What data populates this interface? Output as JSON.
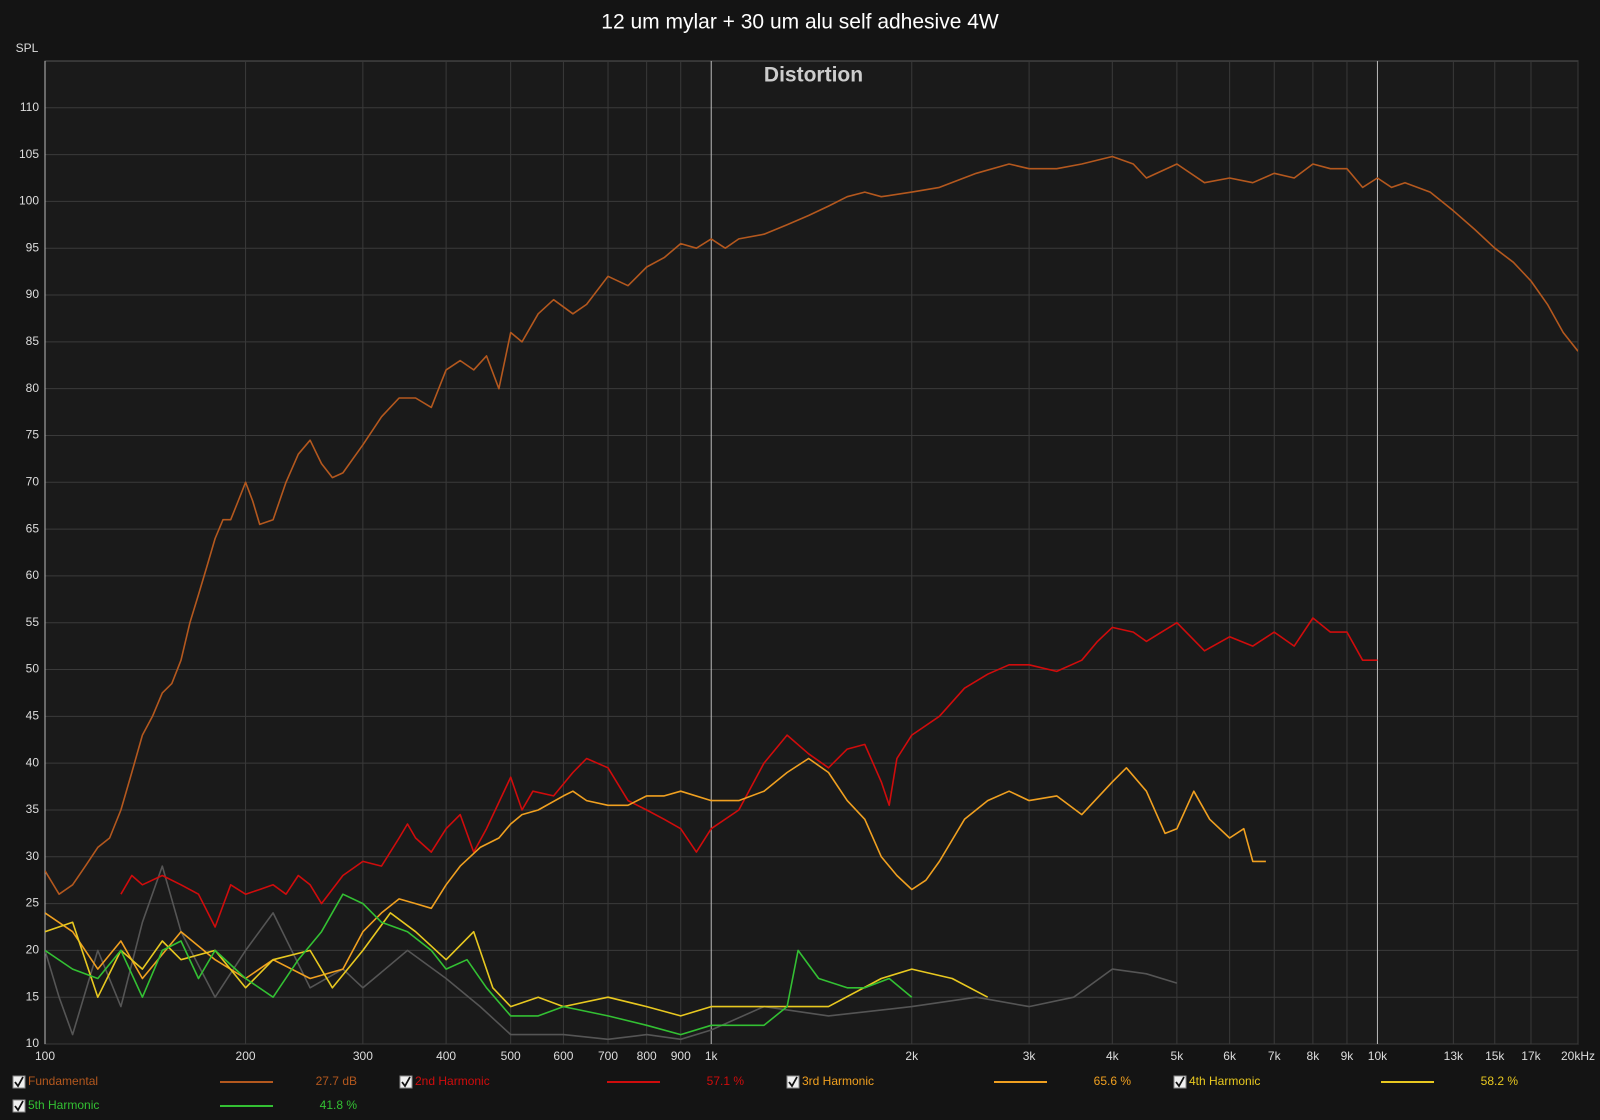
{
  "chart_data": {
    "type": "line",
    "title": "12 um mylar + 30 um alu self adhesive 4W",
    "subtitle": "Distortion",
    "y_label": "SPL",
    "log_x": true,
    "grid": true,
    "xlim": [
      100,
      20000
    ],
    "ylim": [
      10,
      115
    ],
    "yticks": [
      10,
      15,
      20,
      25,
      30,
      35,
      40,
      45,
      50,
      55,
      60,
      65,
      70,
      75,
      80,
      85,
      90,
      95,
      100,
      105,
      110
    ],
    "xticks": [
      100,
      200,
      300,
      400,
      500,
      600,
      700,
      800,
      900,
      {
        "value": 1000,
        "label": "1k"
      },
      {
        "value": 2000,
        "label": "2k"
      },
      {
        "value": 3000,
        "label": "3k"
      },
      {
        "value": 4000,
        "label": "4k"
      },
      {
        "value": 5000,
        "label": "5k"
      },
      {
        "value": 6000,
        "label": "6k"
      },
      {
        "value": 7000,
        "label": "7k"
      },
      {
        "value": 8000,
        "label": "8k"
      },
      {
        "value": 9000,
        "label": "9k"
      },
      {
        "value": 10000,
        "label": "10k"
      },
      {
        "value": 13000,
        "label": "13k"
      },
      {
        "value": 15000,
        "label": "15k"
      },
      {
        "value": 17000,
        "label": "17k"
      },
      {
        "value": 20000,
        "label": "20kHz"
      }
    ],
    "series": [
      {
        "color": "#555555",
        "x": [
          100,
          105,
          110,
          120,
          130,
          140,
          150,
          160,
          180,
          200,
          220,
          250,
          280,
          300,
          350,
          400,
          450,
          500,
          600,
          700,
          800,
          900,
          1000,
          1200,
          1500,
          2000,
          2500,
          3000,
          3500,
          4000,
          4500,
          5000
        ],
        "values": [
          20,
          15,
          11,
          20,
          14,
          23,
          29,
          22,
          15,
          20,
          24,
          16,
          18,
          16,
          20,
          17,
          14,
          11,
          11,
          10.5,
          11,
          10.5,
          11.5,
          14,
          13,
          14,
          15,
          14,
          15,
          18,
          17.5,
          16.5
        ]
      },
      {
        "name": "Fundamental",
        "color": "#b4581e",
        "legend_value": "27.7 dB",
        "x": [
          100,
          105,
          110,
          115,
          120,
          125,
          130,
          135,
          140,
          145,
          150,
          155,
          160,
          165,
          170,
          175,
          180,
          185,
          190,
          195,
          200,
          205,
          210,
          220,
          230,
          240,
          250,
          260,
          270,
          280,
          300,
          320,
          340,
          360,
          380,
          400,
          420,
          440,
          460,
          480,
          500,
          520,
          550,
          580,
          620,
          650,
          700,
          750,
          800,
          850,
          900,
          950,
          1000,
          1050,
          1100,
          1200,
          1300,
          1400,
          1500,
          1600,
          1700,
          1800,
          2000,
          2200,
          2500,
          2800,
          3000,
          3300,
          3600,
          4000,
          4300,
          4500,
          5000,
          5500,
          6000,
          6500,
          7000,
          7500,
          8000,
          8500,
          9000,
          9500,
          10000,
          10500,
          11000,
          12000,
          13000,
          14000,
          15000,
          16000,
          17000,
          18000,
          19000,
          20000
        ],
        "values": [
          28.5,
          26,
          27,
          29,
          31,
          32,
          35,
          39,
          43,
          45,
          47.5,
          48.5,
          51,
          55,
          58,
          61,
          64,
          66,
          66,
          68,
          70,
          68,
          65.5,
          66,
          70,
          73,
          74.5,
          72,
          70.5,
          71,
          74,
          77,
          79,
          79,
          78,
          82,
          83,
          82,
          83.5,
          80,
          86,
          85,
          88,
          89.5,
          88,
          89,
          92,
          91,
          93,
          94,
          95.5,
          95,
          96,
          95,
          96,
          96.5,
          97.5,
          98.5,
          99.5,
          100.5,
          101,
          100.5,
          101,
          101.5,
          103,
          104,
          103.5,
          103.5,
          104,
          104.8,
          104,
          102.5,
          104,
          102,
          102.5,
          102,
          103,
          102.5,
          104,
          103.5,
          103.5,
          101.5,
          102.5,
          101.5,
          102,
          101,
          99,
          97,
          95,
          93.5,
          91.5,
          89,
          86,
          84
        ]
      },
      {
        "name": "2nd Harmonic",
        "color": "#d00c0c",
        "legend_value": "57.1 %",
        "x": [
          130,
          135,
          140,
          150,
          160,
          170,
          180,
          190,
          200,
          210,
          220,
          230,
          240,
          250,
          260,
          280,
          300,
          320,
          340,
          350,
          360,
          380,
          400,
          420,
          440,
          460,
          500,
          520,
          540,
          580,
          620,
          650,
          700,
          750,
          800,
          850,
          900,
          950,
          1000,
          1100,
          1200,
          1300,
          1400,
          1500,
          1600,
          1700,
          1800,
          1850,
          1900,
          2000,
          2200,
          2400,
          2600,
          2800,
          3000,
          3300,
          3600,
          3800,
          4000,
          4300,
          4500,
          5000,
          5500,
          6000,
          6500,
          7000,
          7500,
          8000,
          8500,
          9000,
          9500,
          10000
        ],
        "values": [
          26,
          28,
          27,
          28,
          27,
          26,
          22.5,
          27,
          26,
          26.5,
          27,
          26,
          28,
          27,
          25,
          28,
          29.5,
          29,
          32,
          33.5,
          32,
          30.5,
          33,
          34.5,
          30.5,
          33,
          38.5,
          35,
          37,
          36.5,
          39,
          40.5,
          39.5,
          36,
          35,
          34,
          33,
          30.5,
          33,
          35,
          40,
          43,
          41,
          39.5,
          41.5,
          42,
          38,
          35.5,
          40.5,
          43,
          45,
          48,
          49.5,
          50.5,
          50.5,
          49.8,
          51,
          53,
          54.5,
          54,
          53,
          55,
          52,
          53.5,
          52.5,
          54,
          52.5,
          55.5,
          54,
          54,
          51,
          51
        ]
      },
      {
        "name": "3rd Harmonic",
        "color": "#f0a020",
        "legend_value": "65.6 %",
        "x": [
          100,
          110,
          120,
          130,
          140,
          160,
          180,
          200,
          220,
          250,
          280,
          300,
          320,
          340,
          360,
          380,
          400,
          420,
          450,
          480,
          500,
          520,
          550,
          600,
          620,
          650,
          700,
          750,
          800,
          850,
          900,
          1000,
          1100,
          1200,
          1300,
          1400,
          1500,
          1600,
          1700,
          1800,
          1900,
          2000,
          2100,
          2200,
          2400,
          2600,
          2800,
          3000,
          3300,
          3600,
          4000,
          4200,
          4500,
          4800,
          5000,
          5300,
          5600,
          6000,
          6300,
          6500,
          6800
        ],
        "values": [
          24,
          22,
          18,
          21,
          17,
          22,
          19,
          17,
          19,
          17,
          18,
          22,
          24,
          25.5,
          25,
          24.5,
          27,
          29,
          31,
          32,
          33.5,
          34.5,
          35,
          36.5,
          37,
          36,
          35.5,
          35.5,
          36.5,
          36.5,
          37,
          36,
          36,
          37,
          39,
          40.5,
          39,
          36,
          34,
          30,
          28,
          26.5,
          27.5,
          29.5,
          34,
          36,
          37,
          36,
          36.5,
          34.5,
          38,
          39.5,
          37,
          32.5,
          33,
          37,
          34,
          32,
          33,
          29.5,
          29.5
        ]
      },
      {
        "name": "4th Harmonic",
        "color": "#e8c820",
        "legend_value": "58.2 %",
        "x": [
          100,
          110,
          120,
          130,
          140,
          150,
          160,
          180,
          200,
          220,
          250,
          270,
          300,
          330,
          360,
          400,
          440,
          470,
          500,
          550,
          600,
          700,
          800,
          900,
          1000,
          1200,
          1500,
          1800,
          2000,
          2300,
          2600
        ],
        "values": [
          22,
          23,
          15,
          20,
          18,
          21,
          19,
          20,
          16,
          19,
          20,
          16,
          20,
          24,
          22,
          19,
          22,
          16,
          14,
          15,
          14,
          15,
          14,
          13,
          14,
          14,
          14,
          17,
          18,
          17,
          15
        ]
      },
      {
        "name": "5th Harmonic",
        "color": "#33c033",
        "legend_value": "41.8 %",
        "x": [
          100,
          110,
          120,
          130,
          140,
          150,
          160,
          170,
          180,
          200,
          220,
          240,
          260,
          280,
          300,
          320,
          350,
          380,
          400,
          430,
          460,
          500,
          550,
          600,
          700,
          800,
          900,
          1000,
          1200,
          1300,
          1350,
          1450,
          1600,
          1700,
          1850,
          2000
        ],
        "values": [
          20,
          18,
          17,
          20,
          15,
          20,
          21,
          17,
          20,
          17,
          15,
          19,
          22,
          26,
          25,
          23,
          22,
          20,
          18,
          19,
          16,
          13,
          13,
          14,
          13,
          12,
          11,
          12,
          12,
          14,
          20,
          17,
          16,
          16,
          17,
          15
        ]
      }
    ]
  }
}
